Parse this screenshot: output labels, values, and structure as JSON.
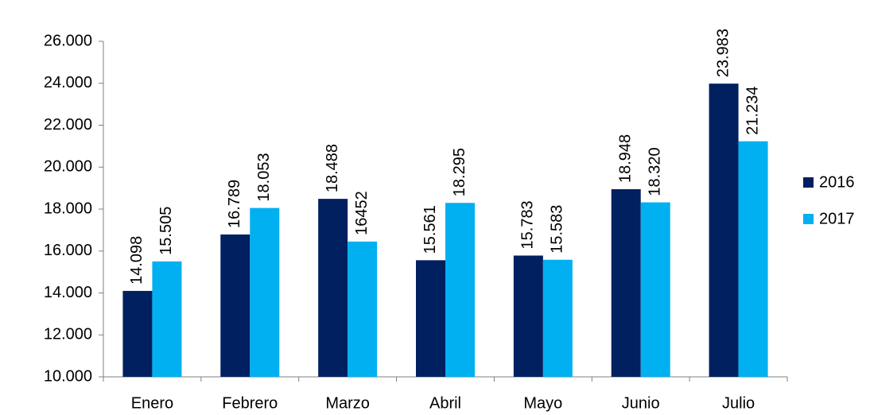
{
  "chart_data": {
    "type": "bar",
    "categories": [
      "Enero",
      "Febrero",
      "Marzo",
      "Abril",
      "Mayo",
      "Junio",
      "Julio"
    ],
    "series": [
      {
        "name": "2016",
        "color": "#002060",
        "values": [
          14098,
          16789,
          18488,
          15561,
          15783,
          18948,
          23983
        ],
        "value_labels": [
          "14.098",
          "16.789",
          "18.488",
          "15.561",
          "15.783",
          "18.948",
          "23.983"
        ]
      },
      {
        "name": "2017",
        "color": "#00b0f0",
        "values": [
          15505,
          18053,
          16452,
          18295,
          15583,
          18320,
          21234
        ],
        "value_labels": [
          "15.505",
          "18.053",
          "16452",
          "18.295",
          "15.583",
          "18.320",
          "21.234"
        ]
      }
    ],
    "ylim": [
      10000,
      26000
    ],
    "yticks": [
      {
        "value": 10000,
        "label": "10.000"
      },
      {
        "value": 12000,
        "label": "12.000"
      },
      {
        "value": 14000,
        "label": "14.000"
      },
      {
        "value": 16000,
        "label": "16.000"
      },
      {
        "value": 18000,
        "label": "18.000"
      },
      {
        "value": 20000,
        "label": "20.000"
      },
      {
        "value": 22000,
        "label": "22.000"
      },
      {
        "value": 24000,
        "label": "24.000"
      },
      {
        "value": 26000,
        "label": "26.000"
      }
    ],
    "grid": false,
    "legend": "right"
  }
}
